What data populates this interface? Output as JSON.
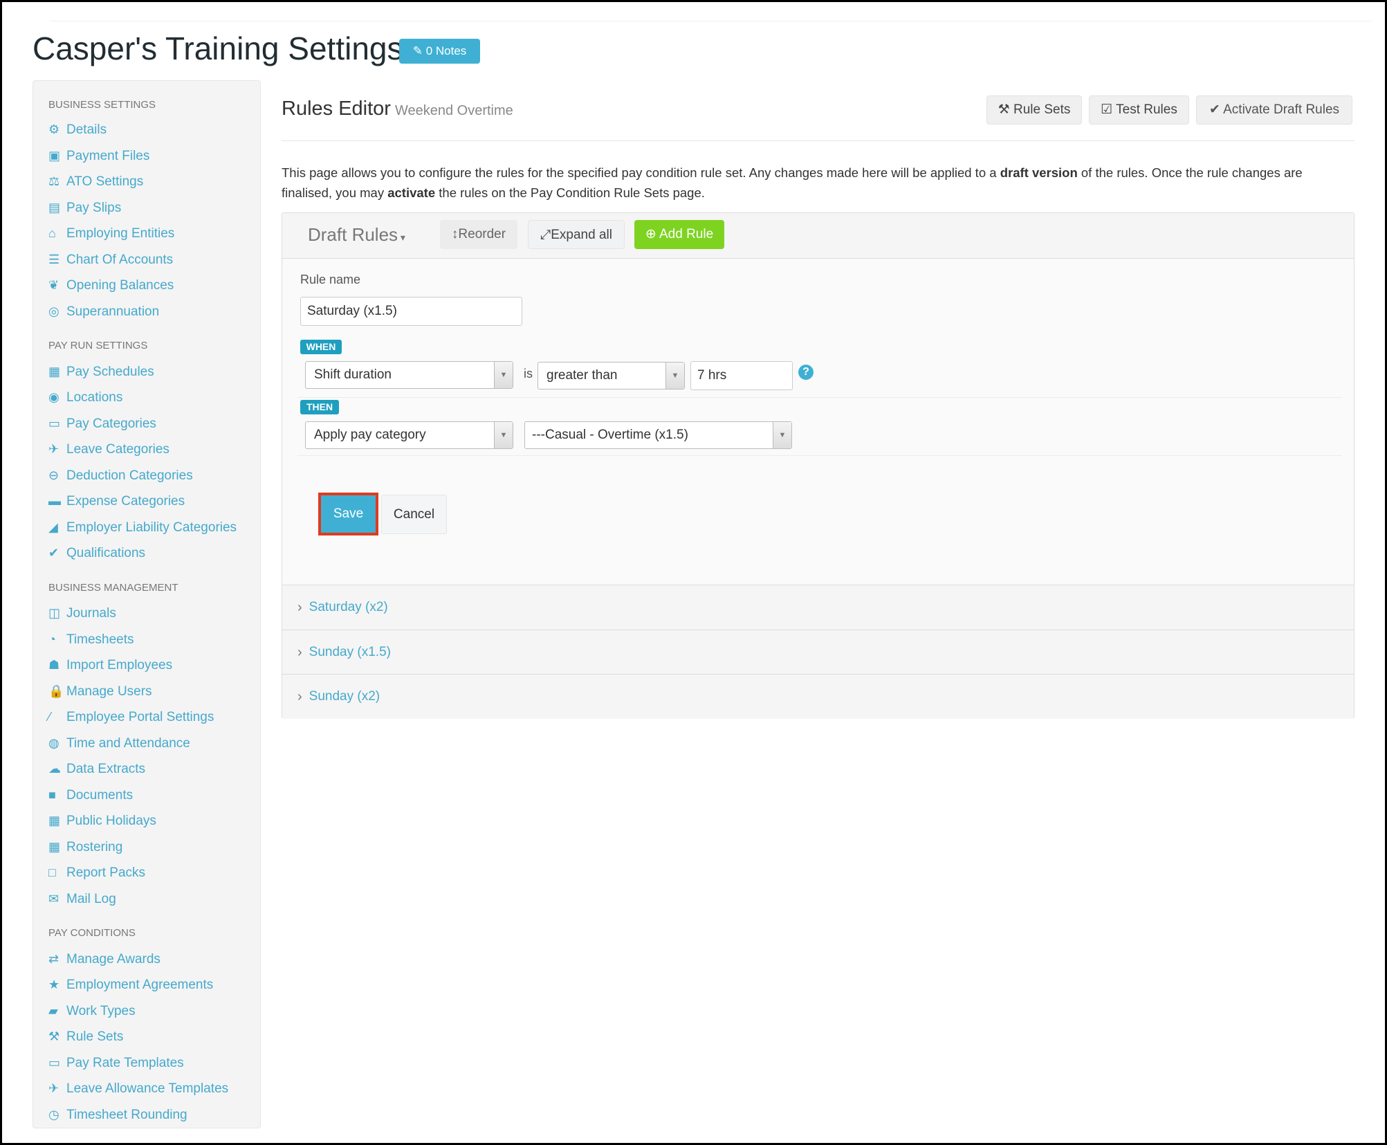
{
  "header": {
    "title": "Casper's Training Settings",
    "notes_label": "0 Notes",
    "notes_icon": "edit-icon"
  },
  "colors": {
    "accent": "#3fb0d4",
    "link": "#45a9cc",
    "success": "#7ed321",
    "highlight": "#e03a1e"
  },
  "sidebar": {
    "sections": [
      {
        "title": "Business Settings",
        "items": [
          {
            "icon": "gear",
            "glyph": "⚙",
            "label": "Details"
          },
          {
            "icon": "floppy",
            "glyph": "▣",
            "label": "Payment Files"
          },
          {
            "icon": "scales",
            "glyph": "⚖",
            "label": "ATO Settings"
          },
          {
            "icon": "file",
            "glyph": "▤",
            "label": "Pay Slips"
          },
          {
            "icon": "bank",
            "glyph": "⌂",
            "label": "Employing Entities"
          },
          {
            "icon": "list",
            "glyph": "☰",
            "label": "Chart Of Accounts"
          },
          {
            "icon": "leaf",
            "glyph": "❦",
            "label": "Opening Balances"
          },
          {
            "icon": "lifebuoy",
            "glyph": "◎",
            "label": "Superannuation"
          }
        ]
      },
      {
        "title": "Pay Run Settings",
        "items": [
          {
            "icon": "calendar",
            "glyph": "▦",
            "label": "Pay Schedules"
          },
          {
            "icon": "globe",
            "glyph": "◉",
            "label": "Locations"
          },
          {
            "icon": "money",
            "glyph": "▭",
            "label": "Pay Categories"
          },
          {
            "icon": "plane",
            "glyph": "✈",
            "label": "Leave Categories"
          },
          {
            "icon": "minus-circle",
            "glyph": "⊖",
            "label": "Deduction Categories"
          },
          {
            "icon": "archive",
            "glyph": "▬",
            "label": "Expense Categories"
          },
          {
            "icon": "area-chart",
            "glyph": "◢",
            "label": "Employer Liability Categories"
          },
          {
            "icon": "check",
            "glyph": "✔",
            "label": "Qualifications"
          }
        ]
      },
      {
        "title": "Business Management",
        "items": [
          {
            "icon": "columns",
            "glyph": "◫",
            "label": "Journals"
          },
          {
            "icon": "clock",
            "glyph": "◔",
            "label": "Timesheets"
          },
          {
            "icon": "users",
            "glyph": "☗",
            "label": "Import Employees"
          },
          {
            "icon": "lock",
            "glyph": "🔒",
            "label": "Manage Users"
          },
          {
            "icon": "magic",
            "glyph": "⁄",
            "label": "Employee Portal Settings"
          },
          {
            "icon": "user-circle",
            "glyph": "◍",
            "label": "Time and Attendance"
          },
          {
            "icon": "cloud-download",
            "glyph": "☁",
            "label": "Data Extracts"
          },
          {
            "icon": "folder",
            "glyph": "■",
            "label": "Documents"
          },
          {
            "icon": "calendar",
            "glyph": "▦",
            "label": "Public Holidays"
          },
          {
            "icon": "calendar",
            "glyph": "▦",
            "label": "Rostering"
          },
          {
            "icon": "folder-open",
            "glyph": "□",
            "label": "Report Packs"
          },
          {
            "icon": "envelope",
            "glyph": "✉",
            "label": "Mail Log"
          }
        ]
      },
      {
        "title": "Pay Conditions",
        "items": [
          {
            "icon": "exchange",
            "glyph": "⇄",
            "label": "Manage Awards"
          },
          {
            "icon": "star",
            "glyph": "★",
            "label": "Employment Agreements"
          },
          {
            "icon": "book",
            "glyph": "▰",
            "label": "Work Types"
          },
          {
            "icon": "gavel",
            "glyph": "⚒",
            "label": "Rule Sets"
          },
          {
            "icon": "money",
            "glyph": "▭",
            "label": "Pay Rate Templates"
          },
          {
            "icon": "plane",
            "glyph": "✈",
            "label": "Leave Allowance Templates"
          },
          {
            "icon": "clock",
            "glyph": "◷",
            "label": "Timesheet Rounding"
          }
        ]
      }
    ]
  },
  "main": {
    "title": "Rules Editor",
    "subtitle": "Weekend Overtime",
    "toolbar": {
      "rule_sets": "Rule Sets",
      "test_rules": "Test Rules",
      "activate": "Activate Draft Rules"
    },
    "desc": {
      "p1": "This page allows you to configure the rules for the specified pay condition rule set. Any changes made here will be applied to a ",
      "b1": "draft version",
      "p2": " of the rules. Once the rule changes are finalised, you may ",
      "b2": "activate",
      "p3": " the rules on the Pay Condition Rule Sets page."
    },
    "panel": {
      "draft_label": "Draft Rules",
      "reorder": "Reorder",
      "expand_all": "Expand all",
      "add_rule": "Add Rule"
    },
    "form": {
      "rule_name_label": "Rule name",
      "rule_name_value": "Saturday (x1.5)",
      "when": "WHEN",
      "condition_field": "Shift duration",
      "is": "is",
      "operator": "greater than",
      "value": "7 hrs",
      "then": "THEN",
      "action": "Apply pay category",
      "pay_category": "---Casual - Overtime (x1.5)",
      "save": "Save",
      "cancel": "Cancel"
    },
    "rules": [
      "Saturday (x2)",
      "Sunday (x1.5)",
      "Sunday (x2)"
    ]
  }
}
